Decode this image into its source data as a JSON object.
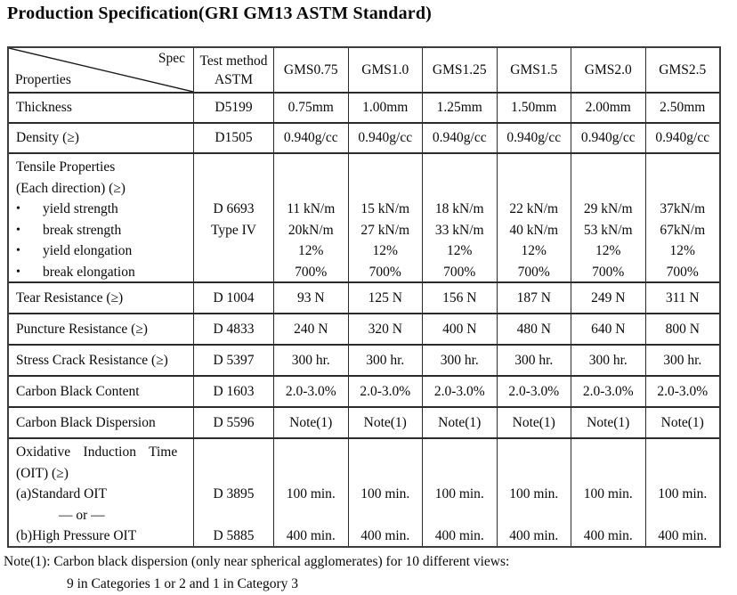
{
  "title": "Production Specification(GRI GM13 ASTM Standard)",
  "table": {
    "corner": {
      "spec": "Spec",
      "properties": "Properties"
    },
    "method_header": [
      "Test method",
      "ASTM"
    ],
    "columns": [
      "GMS0.75",
      "GMS1.0",
      "GMS1.25",
      "GMS1.5",
      "GMS2.0",
      "GMS2.5"
    ],
    "rows": [
      {
        "name": "thickness",
        "property": [
          "Thickness"
        ],
        "method": [
          "D5199"
        ],
        "values": [
          [
            "0.75mm"
          ],
          [
            "1.00mm"
          ],
          [
            "1.25mm"
          ],
          [
            "1.50mm"
          ],
          [
            "2.00mm"
          ],
          [
            "2.50mm"
          ]
        ]
      },
      {
        "name": "density",
        "property": [
          "Density (≥)"
        ],
        "method": [
          "D1505"
        ],
        "values": [
          [
            "0.940g/cc"
          ],
          [
            "0.940g/cc"
          ],
          [
            "0.940g/cc"
          ],
          [
            "0.940g/cc"
          ],
          [
            "0.940g/cc"
          ],
          [
            "0.940g/cc"
          ]
        ]
      },
      {
        "name": "tensile-properties",
        "property": [
          "Tensile Properties",
          "(Each direction) (≥)",
          {
            "t": "yield strength",
            "style": "bullet"
          },
          {
            "t": "break strength",
            "style": "bullet"
          },
          {
            "t": "yield elongation",
            "style": "bullet"
          },
          {
            "t": "break elongation",
            "style": "bullet"
          }
        ],
        "method": [
          "",
          "",
          "D 6693",
          "Type IV",
          "",
          ""
        ],
        "values": [
          [
            "",
            "",
            "11 kN/m",
            "20kN/m",
            "12%",
            "700%"
          ],
          [
            "",
            "",
            "15 kN/m",
            "27 kN/m",
            "12%",
            "700%"
          ],
          [
            "",
            "",
            "18 kN/m",
            "33 kN/m",
            "12%",
            "700%"
          ],
          [
            "",
            "",
            "22 kN/m",
            "40 kN/m",
            "12%",
            "700%"
          ],
          [
            "",
            "",
            "29 kN/m",
            "53 kN/m",
            "12%",
            "700%"
          ],
          [
            "",
            "",
            "37kN/m",
            "67kN/m",
            "12%",
            "700%"
          ]
        ]
      },
      {
        "name": "tear-resistance",
        "property": [
          "Tear Resistance (≥)"
        ],
        "method": [
          "D 1004"
        ],
        "values": [
          [
            "93 N"
          ],
          [
            "125 N"
          ],
          [
            "156 N"
          ],
          [
            "187 N"
          ],
          [
            "249 N"
          ],
          [
            "311 N"
          ]
        ]
      },
      {
        "name": "puncture-resistance",
        "property": [
          "Puncture Resistance (≥)"
        ],
        "method": [
          "D 4833"
        ],
        "values": [
          [
            "240 N"
          ],
          [
            "320 N"
          ],
          [
            "400 N"
          ],
          [
            "480 N"
          ],
          [
            "640 N"
          ],
          [
            "800 N"
          ]
        ]
      },
      {
        "name": "stress-crack-resistance",
        "property": [
          "Stress Crack Resistance (≥)"
        ],
        "method": [
          "D 5397"
        ],
        "values": [
          [
            "300 hr."
          ],
          [
            "300 hr."
          ],
          [
            "300 hr."
          ],
          [
            "300 hr."
          ],
          [
            "300 hr."
          ],
          [
            "300 hr."
          ]
        ]
      },
      {
        "name": "carbon-black-content",
        "property": [
          "Carbon Black Content"
        ],
        "method": [
          "D 1603"
        ],
        "values": [
          [
            "2.0-3.0%"
          ],
          [
            "2.0-3.0%"
          ],
          [
            "2.0-3.0%"
          ],
          [
            "2.0-3.0%"
          ],
          [
            "2.0-3.0%"
          ],
          [
            "2.0-3.0%"
          ]
        ]
      },
      {
        "name": "carbon-black-dispersion",
        "property": [
          "Carbon Black Dispersion"
        ],
        "method": [
          "D 5596"
        ],
        "values": [
          [
            "Note(1)"
          ],
          [
            "Note(1)"
          ],
          [
            "Note(1)"
          ],
          [
            "Note(1)"
          ],
          [
            "Note(1)"
          ],
          [
            "Note(1)"
          ]
        ]
      },
      {
        "name": "oxidative-induction-time",
        "property": [
          {
            "t": "Oxidative Induction Time",
            "style": "justify"
          },
          "(OIT) (≥)",
          "(a)Standard OIT",
          {
            "t": "— or —",
            "style": "or"
          },
          "(b)High Pressure OIT"
        ],
        "method": [
          "",
          "",
          "D 3895",
          "",
          "D 5885"
        ],
        "values": [
          [
            "",
            "",
            "100 min.",
            "",
            "400 min."
          ],
          [
            "",
            "",
            "100 min.",
            "",
            "400 min."
          ],
          [
            "",
            "",
            "100 min.",
            "",
            "400 min."
          ],
          [
            "",
            "",
            "100 min.",
            "",
            "400 min."
          ],
          [
            "",
            "",
            "100 min.",
            "",
            "400 min."
          ],
          [
            "",
            "",
            "100 min.",
            "",
            "400 min."
          ]
        ]
      }
    ]
  },
  "notes": [
    "Note(1): Carbon black dispersion (only near spherical agglomerates) for 10 different views:",
    "9 in Categories 1 or 2 and 1 in Category 3"
  ]
}
